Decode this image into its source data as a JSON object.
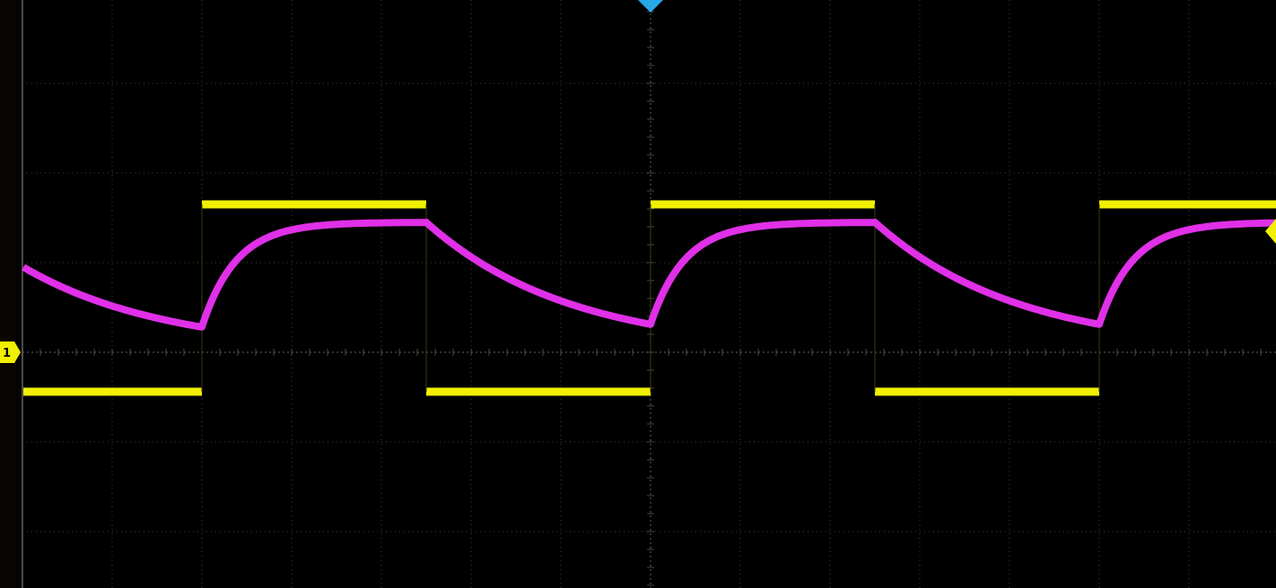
{
  "display": {
    "background_color": "#000000",
    "grid_color": "#5a5a5a",
    "grid_divisions": {
      "horizontal": 14,
      "vertical": 8
    }
  },
  "channels": [
    {
      "id": "1",
      "color": "#f0f000",
      "role": "square-wave"
    },
    {
      "id": "2",
      "color": "#e030e8",
      "role": "rc-response"
    }
  ],
  "markers": {
    "channel1_ground": {
      "label": "1",
      "color": "#f0f000",
      "icon": "channel-ground-marker"
    },
    "trigger_position": {
      "color": "#29a8e8",
      "icon": "trigger-position-marker"
    },
    "trigger_level": {
      "color": "#f0f000",
      "icon": "trigger-level-marker"
    }
  }
}
